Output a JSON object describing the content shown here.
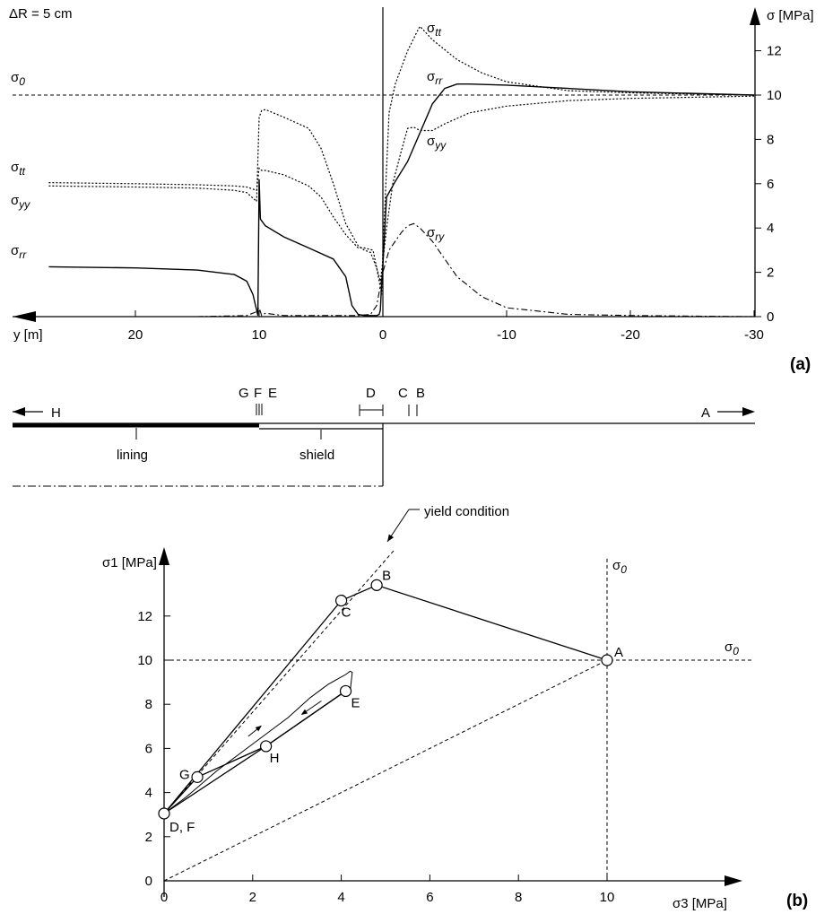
{
  "chart_data": [
    {
      "panel": "(a)",
      "type": "line",
      "annotation": "ΔR = 5 cm",
      "xlabel": "y [m]",
      "ylabel": "σ [MPa]",
      "xlim": [
        27,
        -30
      ],
      "ylim": [
        0,
        13.5
      ],
      "xticks": [
        "20",
        "10",
        "0",
        "-10",
        "-20",
        "-30"
      ],
      "yticks": [
        "0",
        "2",
        "4",
        "6",
        "8",
        "10",
        "12"
      ],
      "reference_line": {
        "label": "σ0",
        "value": 10
      },
      "series": [
        {
          "name": "σtt",
          "style": "dotted",
          "x": [
            27,
            20,
            15,
            12,
            11,
            10.2,
            10,
            9.8,
            9.5,
            8,
            6,
            5,
            4,
            3,
            2,
            1.5,
            0.8,
            0.5,
            0.3,
            0.1,
            0,
            -0.2,
            -0.5,
            -1,
            -2,
            -2.8,
            -3,
            -4,
            -6,
            -8,
            -10,
            -15,
            -20,
            -25,
            -30
          ],
          "y": [
            6.05,
            6.0,
            5.95,
            5.9,
            5.85,
            5.7,
            6.7,
            6.6,
            6.6,
            6.4,
            5.9,
            5.4,
            4.5,
            3.7,
            3.1,
            3.1,
            3.0,
            2.2,
            1.6,
            1.0,
            3.0,
            5.5,
            9.2,
            10.5,
            12.0,
            12.9,
            13.1,
            12.5,
            11.6,
            11.0,
            10.6,
            10.2,
            10.1,
            10.05,
            10.0
          ]
        },
        {
          "name": "σrr",
          "style": "solid",
          "x": [
            27,
            20,
            15,
            12,
            11,
            10.5,
            10.2,
            10.1,
            10,
            9.9,
            9.5,
            8,
            6,
            4,
            3,
            2.5,
            2,
            1.5,
            1,
            0.5,
            0.3,
            0.2,
            0.1,
            0,
            -0.3,
            -1,
            -2,
            -3,
            -4,
            -5,
            -6,
            -7,
            -10,
            -15,
            -20,
            -30
          ],
          "y": [
            2.25,
            2.2,
            2.1,
            1.9,
            1.6,
            1.0,
            0.3,
            0.05,
            6.2,
            4.4,
            4.1,
            3.6,
            3.1,
            2.6,
            1.8,
            0.5,
            0.1,
            0.05,
            0.05,
            0.05,
            0.1,
            0.3,
            1.5,
            2.3,
            5.4,
            6.1,
            7.0,
            8.3,
            9.6,
            10.3,
            10.5,
            10.5,
            10.45,
            10.3,
            10.15,
            10.0
          ]
        },
        {
          "name": "σyy",
          "style": "dotted",
          "x": [
            27,
            20,
            15,
            12,
            11,
            10.2,
            10,
            9.8,
            9.5,
            8,
            6,
            5,
            4,
            3,
            2,
            1.5,
            1,
            0.5,
            0.2,
            0,
            -0.3,
            -0.8,
            -1.5,
            -2,
            -2.5,
            -3,
            -4,
            -5,
            -7,
            -10,
            -15,
            -20,
            -30
          ],
          "y": [
            5.9,
            5.85,
            5.8,
            5.7,
            5.6,
            5.2,
            9.0,
            9.3,
            9.35,
            9.0,
            8.5,
            7.6,
            6.0,
            4.2,
            3.2,
            3.0,
            2.9,
            2.2,
            1.6,
            2.5,
            4.0,
            6.0,
            7.5,
            8.5,
            8.55,
            8.4,
            8.4,
            8.7,
            9.2,
            9.5,
            9.75,
            9.85,
            9.95
          ]
        },
        {
          "name": "σry",
          "style": "dash-dot",
          "x": [
            27,
            15,
            11,
            10.3,
            10,
            9.8,
            9.5,
            8,
            6,
            4,
            2,
            1,
            0.5,
            0,
            -0.5,
            -1,
            -1.5,
            -2,
            -2.5,
            -3,
            -4,
            -5,
            -6,
            -8,
            -10,
            -15,
            -20,
            -30
          ],
          "y": [
            0,
            0,
            0.05,
            0.2,
            0.4,
            0.05,
            0.15,
            0.05,
            0.05,
            0.05,
            0.05,
            0.1,
            0.5,
            2.0,
            3.0,
            3.4,
            3.8,
            4.1,
            4.2,
            4.0,
            3.4,
            2.6,
            1.8,
            0.9,
            0.4,
            0.1,
            0.05,
            0.0
          ]
        }
      ]
    },
    {
      "panel": "schematic",
      "type": "diagram",
      "labels": {
        "H": "H",
        "A": "A",
        "G": "G",
        "F": "F",
        "E": "E",
        "D": "D",
        "C": "C",
        "B": "B",
        "lining": "lining",
        "shield": "shield"
      },
      "marks_y": {
        "G": 10.2,
        "F": 10.0,
        "E": 9.8,
        "D": 1.1,
        "C": -1.2,
        "B": -1.6
      }
    },
    {
      "panel": "(b)",
      "type": "scatter",
      "xlabel": "σ3 [MPa]",
      "ylabel": "σ1 [MPa]",
      "xlim": [
        0,
        13
      ],
      "ylim": [
        0,
        14.6
      ],
      "xticks": [
        "0",
        "2",
        "4",
        "6",
        "8",
        "10"
      ],
      "yticks": [
        "0",
        "2",
        "4",
        "6",
        "8",
        "10",
        "12"
      ],
      "yield_condition_label": "yield condition",
      "reference_lines": [
        {
          "label": "σ0",
          "axis": "x",
          "value": 10
        },
        {
          "label": "σ0",
          "axis": "y",
          "value": 10
        }
      ],
      "points": [
        {
          "label": "A",
          "x": 10.0,
          "y": 10.0
        },
        {
          "label": "B",
          "x": 4.8,
          "y": 13.4
        },
        {
          "label": "C",
          "x": 4.0,
          "y": 12.7
        },
        {
          "label": "E",
          "x": 4.1,
          "y": 8.6
        },
        {
          "label": "G",
          "x": 0.75,
          "y": 4.7
        },
        {
          "label": "H",
          "x": 2.3,
          "y": 6.1
        },
        {
          "label": "D, F",
          "x": 0.0,
          "y": 3.05
        }
      ],
      "path_solid": [
        [
          10,
          10
        ],
        [
          4.8,
          13.4
        ],
        [
          4.0,
          12.7
        ],
        [
          0,
          3.05
        ],
        [
          0.75,
          4.7
        ],
        [
          2.3,
          6.1
        ],
        [
          4.1,
          8.6
        ]
      ],
      "path_thin": [
        [
          0,
          3.05
        ],
        [
          0.5,
          3.8
        ],
        [
          1.2,
          5.0
        ],
        [
          2.0,
          6.2
        ],
        [
          2.8,
          7.4
        ],
        [
          3.3,
          8.3
        ],
        [
          3.7,
          8.9
        ],
        [
          4.1,
          9.35
        ],
        [
          4.2,
          9.5
        ],
        [
          4.25,
          9.45
        ],
        [
          4.2,
          8.6
        ]
      ],
      "path_return": [
        [
          4.1,
          8.6
        ],
        [
          2.3,
          6.1
        ],
        [
          0,
          3.05
        ]
      ],
      "yield_line": [
        [
          0,
          3.05
        ],
        [
          5.2,
          15.0
        ]
      ],
      "hydrostatic_line": [
        [
          0,
          0
        ],
        [
          10,
          10
        ]
      ]
    }
  ]
}
